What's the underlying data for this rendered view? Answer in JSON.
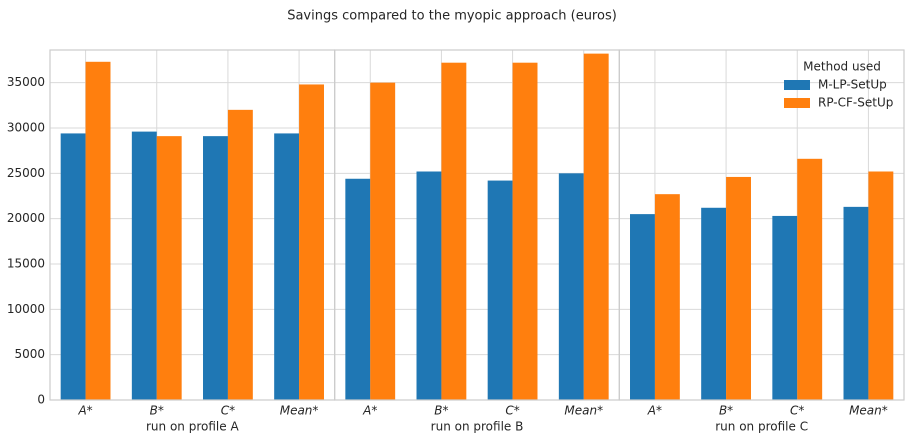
{
  "title": "Savings compared to the myopic approach (euros)",
  "chart_data": {
    "type": "bar",
    "categories": [
      "A*",
      "B*",
      "C*",
      "Mean*",
      "A*",
      "B*",
      "C*",
      "Mean*",
      "A*",
      "B*",
      "C*",
      "Mean*"
    ],
    "xlabels": [
      "run on profile A",
      "run on profile B",
      "run on profile C"
    ],
    "series": [
      {
        "name": "M-LP-SetUp",
        "color": "#1f77b4",
        "values": [
          29400,
          29600,
          29100,
          29400,
          24400,
          25200,
          24200,
          25000,
          20500,
          21200,
          20300,
          21300
        ]
      },
      {
        "name": "RP-CF-SetUp",
        "color": "#ff7f0e",
        "values": [
          37300,
          29100,
          32000,
          34800,
          35000,
          37200,
          37200,
          38200,
          22700,
          24600,
          26600,
          25200
        ]
      }
    ],
    "ylim": [
      0,
      38600
    ],
    "yticks": [
      0,
      5000,
      10000,
      15000,
      20000,
      25000,
      30000,
      35000
    ],
    "grid": true,
    "legend_title": "Method used",
    "legend": "upper right"
  }
}
